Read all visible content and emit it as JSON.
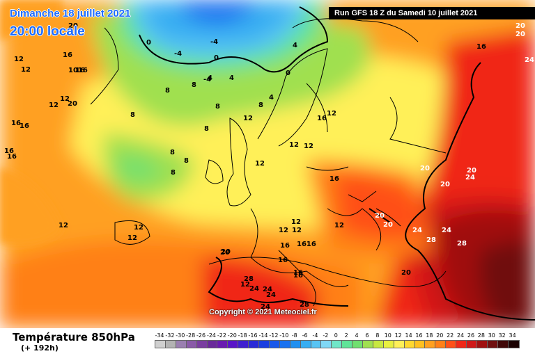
{
  "header": {
    "date": "Dimanche 18 juillet 2021",
    "time": "20:00 locale",
    "run": "Run GFS 18 Z du Samedi 10 juillet 2021",
    "copyright": "Copyright © 2021 Meteociel.fr"
  },
  "footer": {
    "parameter": "Température 850hPa",
    "lead": "(+ 192h)"
  },
  "legend": {
    "ticks": [
      "-34",
      "-32",
      "-30",
      "-28",
      "-26",
      "-24",
      "-22",
      "-20",
      "-18",
      "-16",
      "-14",
      "-12",
      "-10",
      "-8",
      "-6",
      "-4",
      "-2",
      "0",
      "2",
      "4",
      "6",
      "8",
      "10",
      "12",
      "14",
      "16",
      "18",
      "20",
      "22",
      "24",
      "26",
      "28",
      "30",
      "32",
      "34"
    ],
    "colors": [
      "#d0d0d0",
      "#b3b3b3",
      "#9a7fb0",
      "#8a5aa8",
      "#7a3ea0",
      "#6a2a9a",
      "#6a1ab0",
      "#5a14c8",
      "#4020d0",
      "#2a2ad8",
      "#1a3ee0",
      "#1a58ea",
      "#1a72f0",
      "#2090f0",
      "#38aef2",
      "#58c4f4",
      "#80d8f6",
      "#70e6c8",
      "#60e498",
      "#70e070",
      "#a0e050",
      "#c8e840",
      "#e8f040",
      "#fff058",
      "#ffd830",
      "#ffc020",
      "#ffa020",
      "#ff8018",
      "#ff5018",
      "#f02818",
      "#d01818",
      "#a01010",
      "#701010",
      "#400808",
      "#1a0000"
    ]
  },
  "map_labels": [
    {
      "t": "20",
      "c": "#000"
    },
    {
      "t": "16",
      "c": "#000"
    },
    {
      "t": "12",
      "c": "#000"
    },
    {
      "t": "16",
      "c": "#000"
    },
    {
      "t": "1016",
      "c": "#000"
    },
    {
      "t": "12",
      "c": "#000"
    },
    {
      "t": "16",
      "c": "#000"
    },
    {
      "t": "16",
      "c": "#000"
    },
    {
      "t": "16",
      "c": "#000"
    },
    {
      "t": "16",
      "c": "#000"
    },
    {
      "t": "12",
      "c": "#000"
    },
    {
      "t": "12",
      "c": "#000"
    },
    {
      "t": "12",
      "c": "#000"
    },
    {
      "t": "20",
      "c": "#000"
    },
    {
      "t": "-4",
      "c": "#000"
    },
    {
      "t": "0",
      "c": "#000"
    },
    {
      "t": "-4",
      "c": "#000"
    },
    {
      "t": "-4",
      "c": "#000"
    },
    {
      "t": "0",
      "c": "#000"
    },
    {
      "t": "4",
      "c": "#000"
    },
    {
      "t": "0",
      "c": "#000"
    },
    {
      "t": "8",
      "c": "#000"
    },
    {
      "t": "4",
      "c": "#000"
    },
    {
      "t": "8",
      "c": "#000"
    },
    {
      "t": "4",
      "c": "#000"
    },
    {
      "t": "4",
      "c": "#000"
    },
    {
      "t": "8",
      "c": "#000"
    },
    {
      "t": "8",
      "c": "#000"
    },
    {
      "t": "8",
      "c": "#000"
    },
    {
      "t": "8",
      "c": "#000"
    },
    {
      "t": "8",
      "c": "#000"
    },
    {
      "t": "12",
      "c": "#000"
    },
    {
      "t": "8",
      "c": "#000"
    },
    {
      "t": "8",
      "c": "#000"
    },
    {
      "t": "12",
      "c": "#000"
    },
    {
      "t": "12",
      "c": "#000"
    },
    {
      "t": "12",
      "c": "#000"
    },
    {
      "t": "16",
      "c": "#000"
    },
    {
      "t": "16",
      "c": "#000"
    },
    {
      "t": "12",
      "c": "#000"
    },
    {
      "t": "12",
      "c": "#000"
    },
    {
      "t": "12",
      "c": "#000"
    },
    {
      "t": "12",
      "c": "#000"
    },
    {
      "t": "1616",
      "c": "#000"
    },
    {
      "t": "12",
      "c": "#000"
    },
    {
      "t": "20",
      "c": "#000"
    },
    {
      "t": "16",
      "c": "#000"
    },
    {
      "t": "16",
      "c": "#000"
    },
    {
      "t": "28",
      "c": "#000"
    },
    {
      "t": "24",
      "c": "#000"
    },
    {
      "t": "24",
      "c": "#000"
    },
    {
      "t": "24",
      "c": "#000"
    },
    {
      "t": "28",
      "c": "#000"
    },
    {
      "t": "20",
      "c": "#000"
    },
    {
      "t": "20",
      "c": "#fff"
    },
    {
      "t": "20",
      "c": "#fff"
    },
    {
      "t": "24",
      "c": "#fff"
    },
    {
      "t": "24",
      "c": "#fff"
    },
    {
      "t": "28",
      "c": "#fff"
    },
    {
      "t": "28",
      "c": "#fff"
    },
    {
      "t": "20",
      "c": "#fff"
    },
    {
      "t": "20",
      "c": "#fff"
    },
    {
      "t": "24",
      "c": "#fff"
    },
    {
      "t": "20",
      "c": "#fff"
    },
    {
      "t": "16",
      "c": "#000"
    },
    {
      "t": "20",
      "c": "#fff"
    },
    {
      "t": "20",
      "c": "#fff"
    },
    {
      "t": "24",
      "c": "#fff"
    },
    {
      "t": "12",
      "c": "#000"
    },
    {
      "t": "12",
      "c": "#000"
    },
    {
      "t": "12",
      "c": "#000"
    },
    {
      "t": "16",
      "c": "#000"
    },
    {
      "t": "20",
      "c": "#000"
    },
    {
      "t": "24",
      "c": "#000"
    },
    {
      "t": "16",
      "c": "#000"
    }
  ]
}
